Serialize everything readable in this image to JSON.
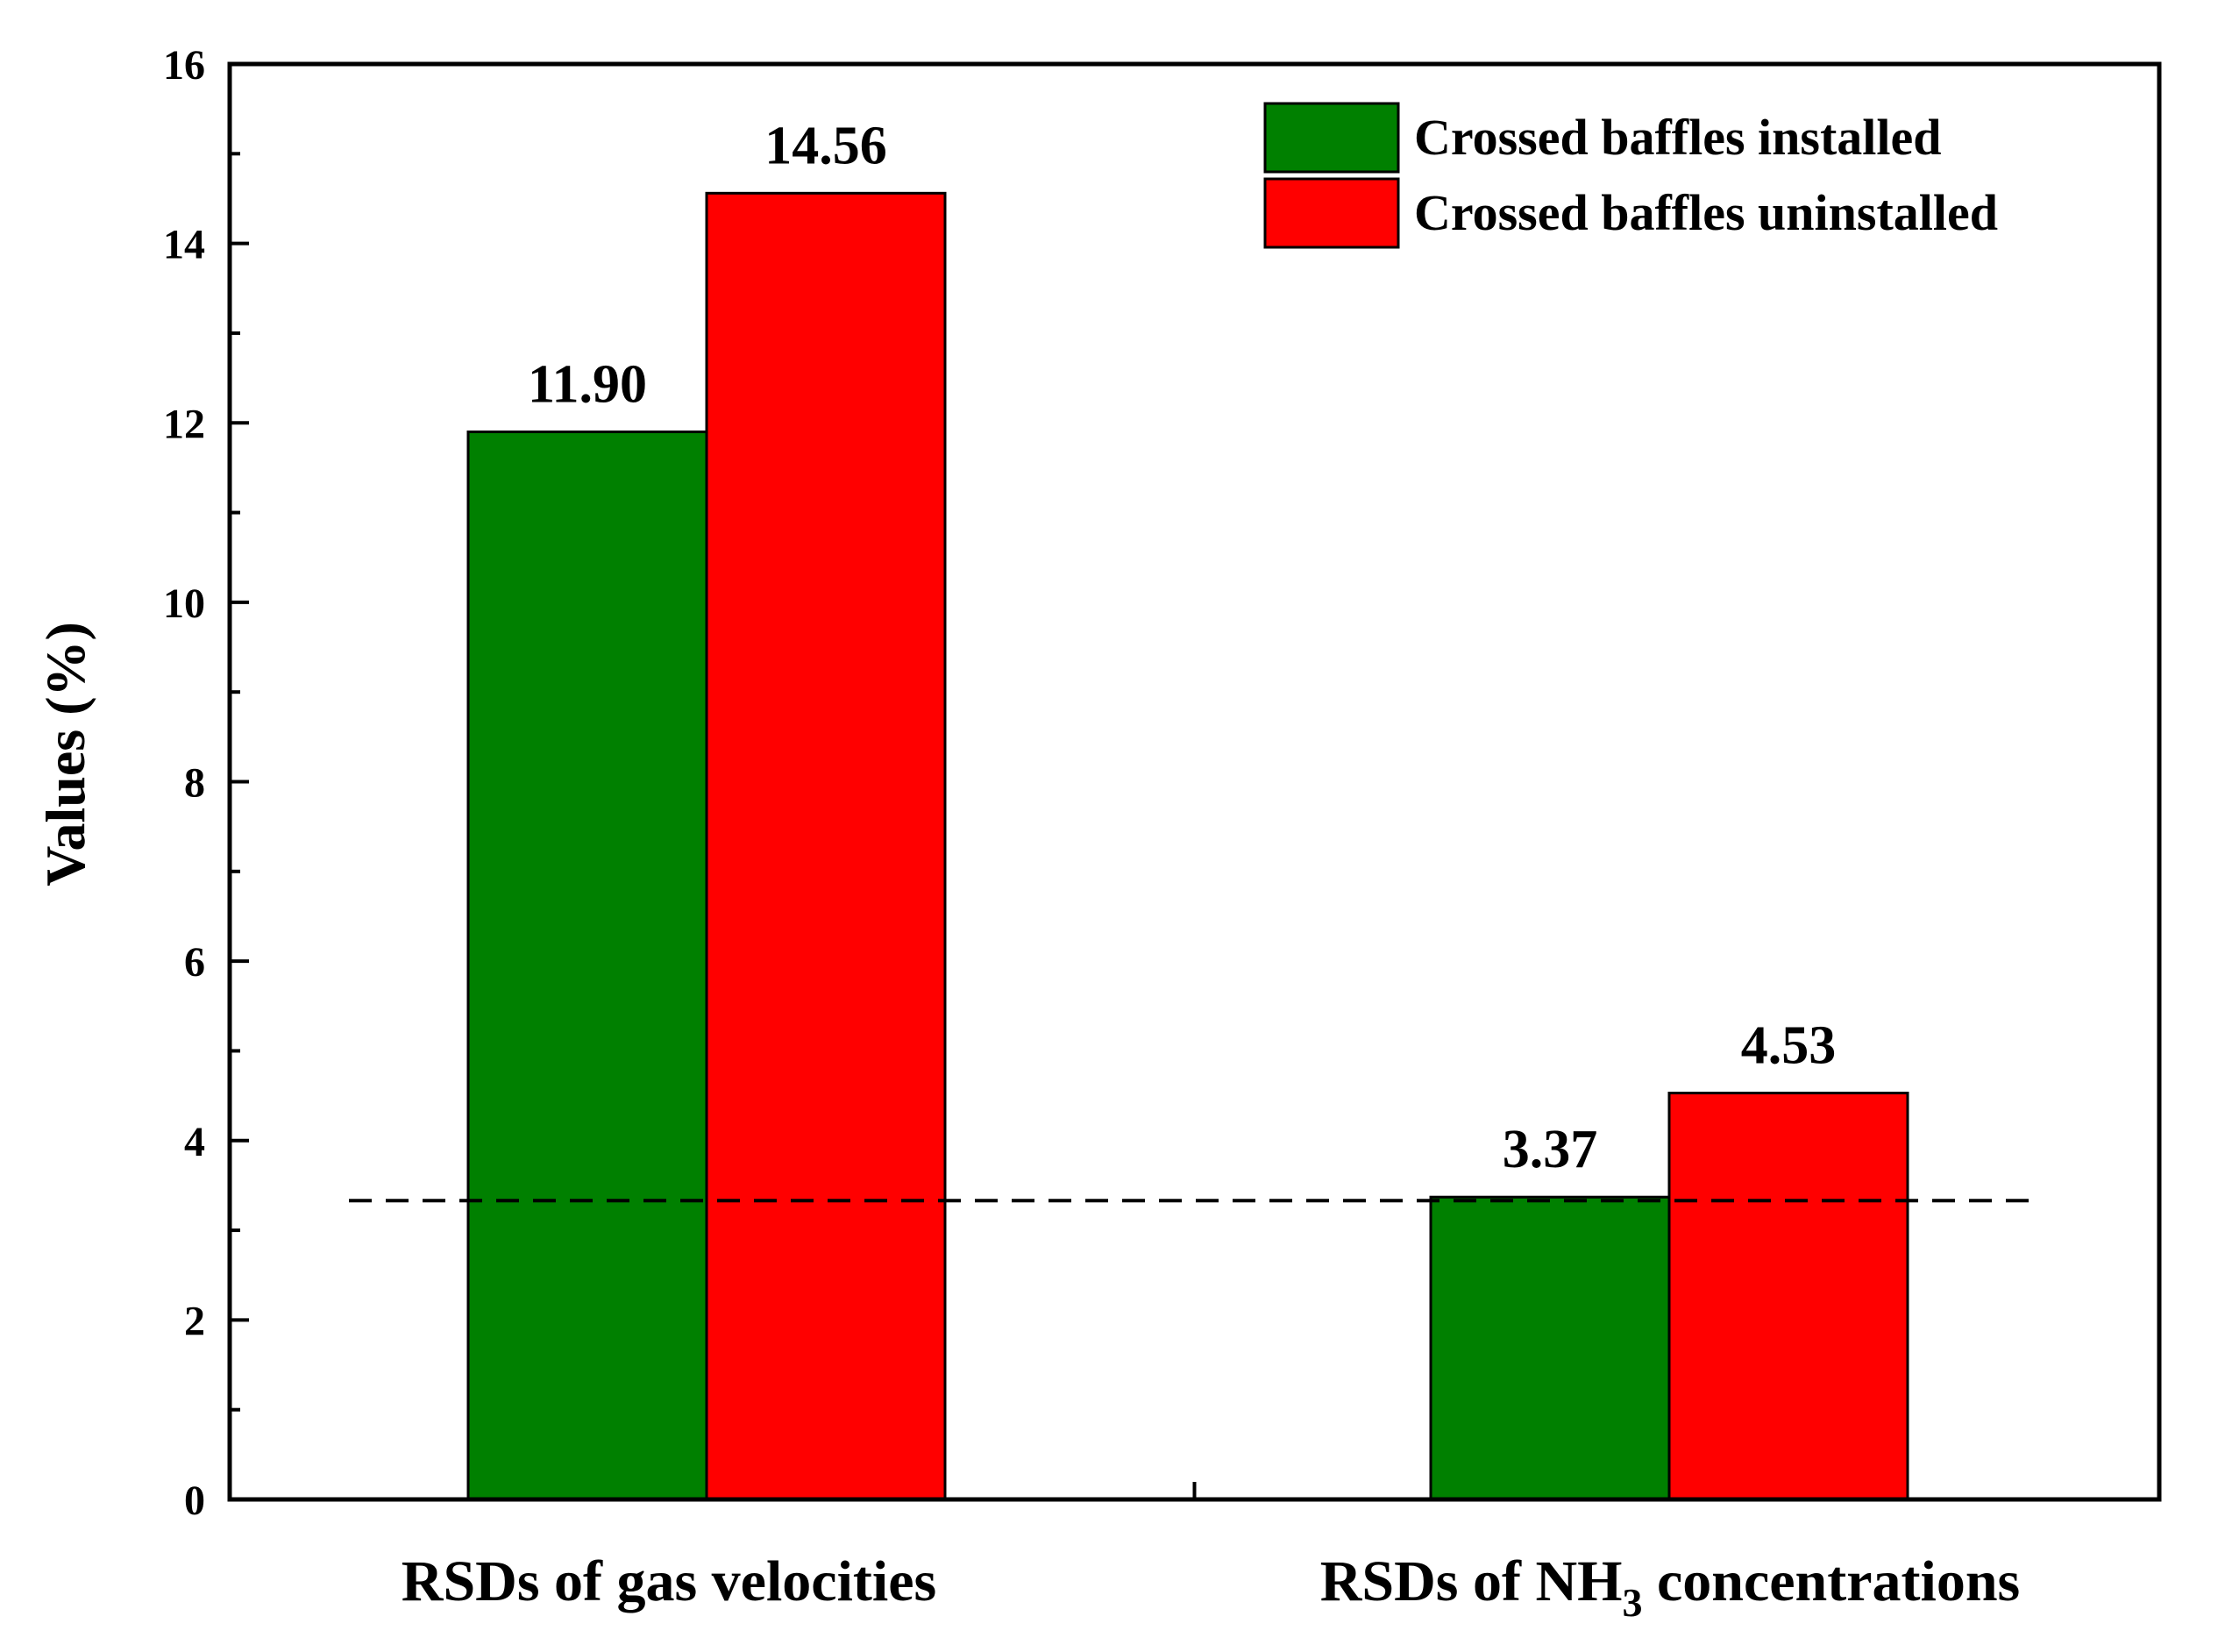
{
  "chart_data": {
    "type": "bar",
    "title": "",
    "xlabel": "",
    "ylabel": "Values (%)",
    "ylim": [
      0,
      16
    ],
    "yticks": [
      0,
      2,
      4,
      6,
      8,
      10,
      12,
      14,
      16
    ],
    "categories": [
      {
        "pre": "RSDs of  gas velocities",
        "sub": "",
        "post": ""
      },
      {
        "pre": "RSDs of  NH",
        "sub": "3",
        "post": " concentrations"
      }
    ],
    "series": [
      {
        "name": "Crossed baffles installed",
        "color": "#008000",
        "values": [
          11.9,
          3.37
        ],
        "labels": [
          "11.90",
          "3.37"
        ]
      },
      {
        "name": "Crossed baffles uninstalled",
        "color": "#ff0000",
        "values": [
          14.56,
          4.53
        ],
        "labels": [
          "14.56",
          "4.53"
        ]
      }
    ],
    "reference_line": {
      "y": 3.33,
      "style": "dashed"
    },
    "legend_position": "top-right",
    "grid": false
  }
}
